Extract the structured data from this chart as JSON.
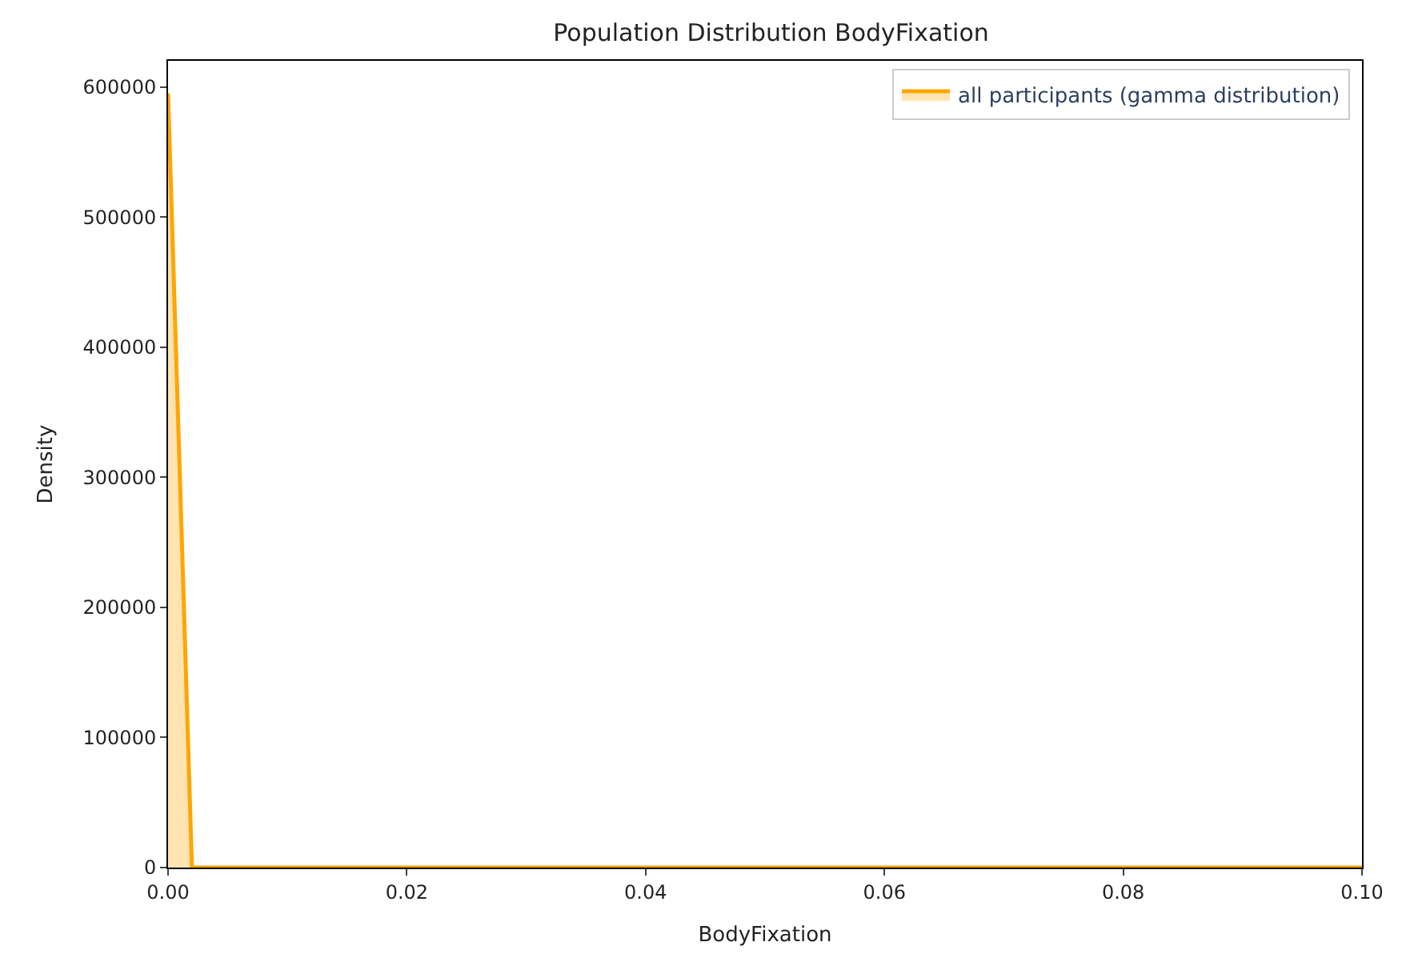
{
  "chart_data": {
    "type": "area",
    "title": "Population Distribution BodyFixation",
    "xlabel": "BodyFixation",
    "ylabel": "Density",
    "series": [
      {
        "name": "all participants (gamma distribution)",
        "color": "#ffa500",
        "x": [
          0,
          0.002,
          0.02,
          0.04,
          0.06,
          0.08,
          0.1
        ],
        "values": [
          595000,
          0,
          0,
          0,
          0,
          0,
          0
        ]
      }
    ],
    "xlim": [
      0,
      0.1
    ],
    "xticks": [
      {
        "value": 0,
        "label": "0.00"
      },
      {
        "value": 0.02,
        "label": "0.02"
      },
      {
        "value": 0.04,
        "label": "0.04"
      },
      {
        "value": 0.06,
        "label": "0.06"
      },
      {
        "value": 0.08,
        "label": "0.08"
      },
      {
        "value": 0.1,
        "label": "0.10"
      }
    ],
    "ylim": [
      0,
      620000
    ],
    "yticks": [
      0,
      100000,
      200000,
      300000,
      400000,
      500000,
      600000
    ],
    "legend": "top right",
    "grid": false
  }
}
